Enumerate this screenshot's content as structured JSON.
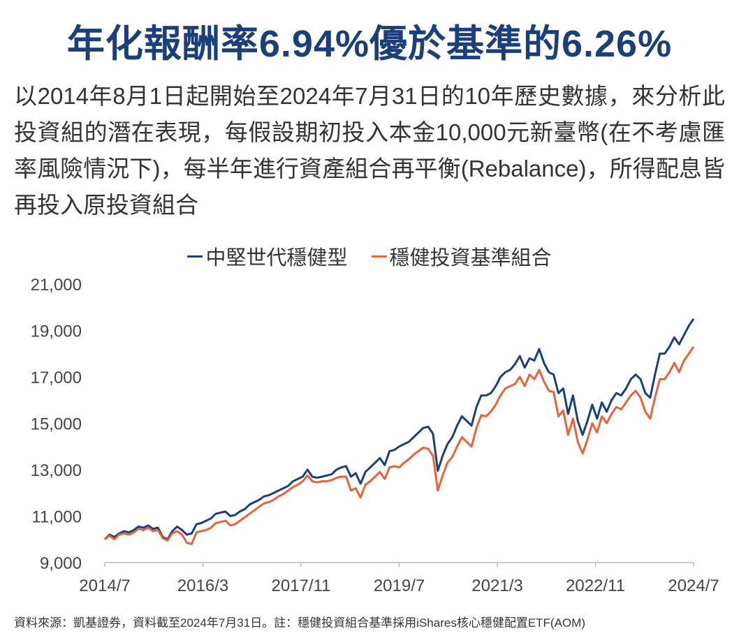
{
  "title": "年化報酬率6.94%優於基準的6.26%",
  "description": "以2014年8月1日起開始至2024年7月31日的10年歷史數據，來分析此投資組的潛在表現，每假設期初投入本金10,000元新臺幣(在不考慮匯率風險情況下)，每半年進行資產組合再平衡(Rebalance)，所得配息皆再投入原投資組合",
  "source": "資料來源：凱基證券，資料截至2024年7月31日。註：穩健投資組合基準採用iShares核心穩健配置ETF(AOM)",
  "chart_data": {
    "type": "line",
    "title": "",
    "xlabel": "",
    "ylabel": "",
    "ylim": [
      9000,
      21000
    ],
    "yticks": [
      9000,
      11000,
      13000,
      15000,
      17000,
      19000,
      21000
    ],
    "ytick_labels": [
      "9,000",
      "11,000",
      "13,000",
      "15,000",
      "17,000",
      "19,000",
      "21,000"
    ],
    "x_start": "2014/7",
    "x_end": "2024/7",
    "xtick_labels": [
      "2014/7",
      "2016/3",
      "2017/11",
      "2019/7",
      "2021/3",
      "2022/11",
      "2024/7"
    ],
    "grid": false,
    "legend_placement": "top-center",
    "series": [
      {
        "name": "中堅世代穩健型",
        "color": "#1a3f7a",
        "values": [
          10000,
          10200,
          10100,
          10250,
          10350,
          10300,
          10400,
          10550,
          10500,
          10600,
          10450,
          10500,
          10100,
          10000,
          10350,
          10550,
          10400,
          10200,
          10250,
          10650,
          10700,
          10800,
          10900,
          11100,
          11150,
          11200,
          11000,
          11050,
          11200,
          11300,
          11500,
          11600,
          11700,
          11850,
          11900,
          12000,
          12100,
          12200,
          12300,
          12500,
          12600,
          12700,
          13000,
          12700,
          12650,
          12700,
          12750,
          12800,
          13000,
          13100,
          13150,
          12700,
          12850,
          12400,
          12900,
          13100,
          13300,
          13500,
          13200,
          13800,
          13850,
          14000,
          14100,
          14200,
          14400,
          14600,
          14800,
          14850,
          14550,
          12950,
          13600,
          14100,
          14400,
          14900,
          15300,
          15100,
          14900,
          15700,
          16200,
          16200,
          16300,
          16600,
          17000,
          17200,
          17300,
          17550,
          17900,
          17400,
          17800,
          17700,
          18200,
          17600,
          17200,
          17100,
          16300,
          16500,
          15400,
          16200,
          15100,
          14500,
          15100,
          15800,
          15200,
          15900,
          15500,
          16000,
          16300,
          16200,
          16500,
          16900,
          17100,
          16900,
          16300,
          16100,
          17100,
          18000,
          18000,
          18300,
          18700,
          18400,
          18800,
          19200,
          19500
        ]
      },
      {
        "name": "穩健投資基準組合",
        "color": "#e8623a",
        "values": [
          10000,
          10150,
          10000,
          10200,
          10250,
          10200,
          10300,
          10450,
          10400,
          10500,
          10350,
          10400,
          10050,
          9950,
          10250,
          10350,
          10200,
          9850,
          9800,
          10300,
          10350,
          10400,
          10500,
          10700,
          10750,
          10800,
          10600,
          10650,
          10800,
          10950,
          11100,
          11250,
          11400,
          11550,
          11600,
          11700,
          11850,
          11950,
          12100,
          12250,
          12350,
          12500,
          12750,
          12500,
          12450,
          12500,
          12500,
          12550,
          12650,
          12700,
          12700,
          12100,
          12200,
          11800,
          12350,
          12500,
          12700,
          12900,
          12600,
          13100,
          13150,
          13100,
          13300,
          13450,
          13650,
          13800,
          13950,
          13900,
          13600,
          12100,
          12750,
          13300,
          13550,
          14000,
          14400,
          14200,
          14000,
          14800,
          15350,
          15300,
          15500,
          15800,
          16200,
          16500,
          16600,
          16700,
          17000,
          16600,
          17100,
          16900,
          17300,
          16800,
          16400,
          16350,
          15300,
          15550,
          14500,
          15200,
          14200,
          13700,
          14300,
          15000,
          14600,
          15300,
          15000,
          15400,
          15700,
          15600,
          15900,
          16200,
          16400,
          16100,
          15500,
          15200,
          16100,
          16900,
          16900,
          17200,
          17600,
          17200,
          17700,
          18000,
          18300
        ]
      }
    ]
  }
}
